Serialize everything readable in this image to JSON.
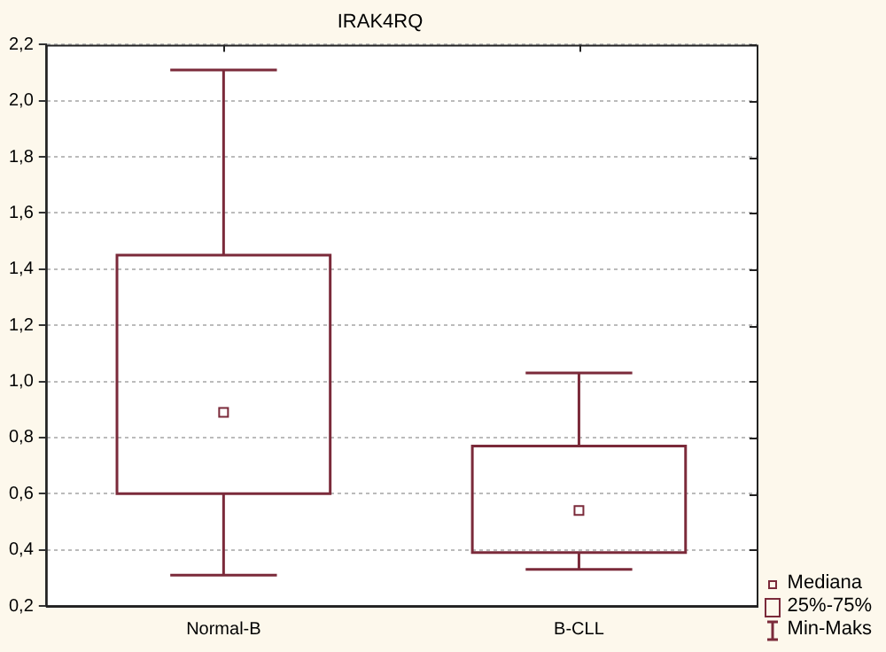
{
  "chart_data": {
    "type": "box",
    "title": "IRAK4RQ",
    "categories": [
      "Normal-B",
      "B-CLL"
    ],
    "boxes": [
      {
        "low": 0.31,
        "q1": 0.6,
        "median": 0.89,
        "q3": 1.45,
        "high": 2.11
      },
      {
        "low": 0.33,
        "q1": 0.39,
        "median": 0.54,
        "q3": 0.77,
        "high": 1.03
      }
    ],
    "color": "#7b2a3a",
    "marker": "square",
    "grid": "y",
    "ylim": [
      0.2,
      2.2
    ],
    "yticks": [
      {
        "value": 0.2,
        "label": "0,2"
      },
      {
        "value": 0.4,
        "label": "0,4"
      },
      {
        "value": 0.6,
        "label": "0,6"
      },
      {
        "value": 0.8,
        "label": "0,8"
      },
      {
        "value": 1.0,
        "label": "1,0"
      },
      {
        "value": 1.2,
        "label": "1,2"
      },
      {
        "value": 1.4,
        "label": "1,4"
      },
      {
        "value": 1.6,
        "label": "1,6"
      },
      {
        "value": 1.8,
        "label": "1,8"
      },
      {
        "value": 2.0,
        "label": "2,0"
      },
      {
        "value": 2.2,
        "label": "2,2"
      }
    ],
    "annotations": [
      "Mediana",
      "25%-75%",
      "Min-Maks"
    ]
  }
}
